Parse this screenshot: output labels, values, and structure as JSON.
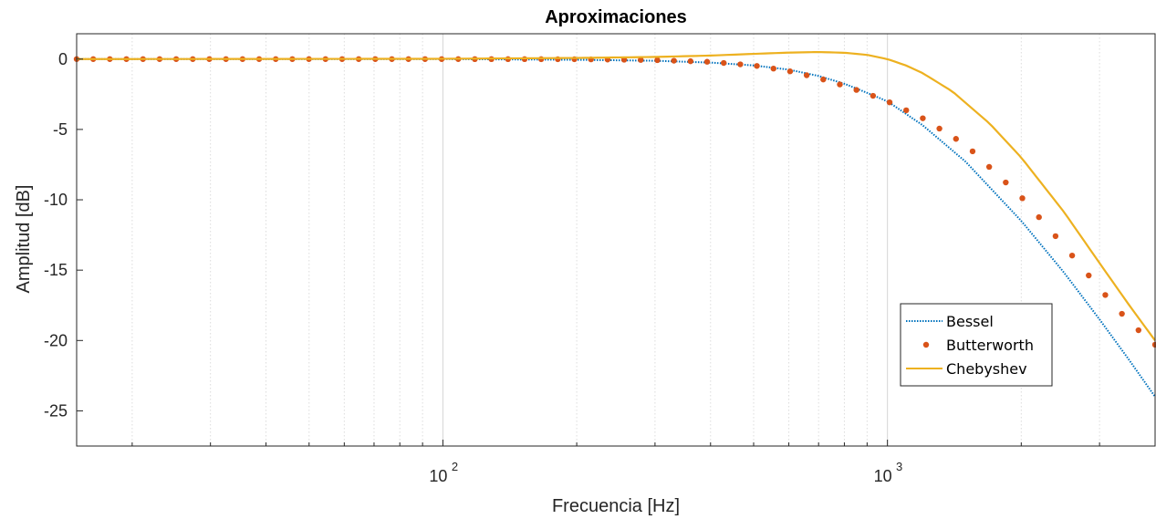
{
  "chart_data": {
    "type": "line",
    "title": "Aproximaciones",
    "xlabel": "Frecuencia [Hz]",
    "ylabel": "Amplitud [dB]",
    "xscale": "log",
    "xlim": [
      15,
      4000
    ],
    "ylim": [
      -27.5,
      1.8
    ],
    "yticks": [
      0,
      -5,
      -10,
      -15,
      -20,
      -25
    ],
    "ytick_labels": [
      "0",
      "-5",
      "-10",
      "-15",
      "-20",
      "-25"
    ],
    "xticks": [
      100,
      1000
    ],
    "xtick_labels": [
      {
        "base": "10",
        "exp": "2"
      },
      {
        "base": "10",
        "exp": "3"
      }
    ],
    "grid": "x-major-and-minor",
    "legend_position": "bottom-right",
    "series": [
      {
        "name": "Bessel",
        "style": "dotted",
        "color": "#0072BD",
        "x": [
          15,
          100,
          200,
          300,
          400,
          500,
          600,
          700,
          800,
          900,
          1000,
          1200,
          1500,
          2000,
          2500,
          3000,
          3500,
          4000
        ],
        "y": [
          0,
          0,
          -0.05,
          -0.12,
          -0.25,
          -0.45,
          -0.75,
          -1.2,
          -1.75,
          -2.4,
          -3.0,
          -4.7,
          -7.3,
          -11.5,
          -15.2,
          -18.5,
          -21.4,
          -24.0
        ]
      },
      {
        "name": "Butterworth",
        "style": "markers",
        "color": "#D95319",
        "x": [
          15,
          100,
          200,
          300,
          400,
          500,
          600,
          700,
          800,
          900,
          1000,
          1200,
          1500,
          2000,
          2500,
          3000,
          3500,
          4000
        ],
        "y": [
          0,
          0,
          -0.01,
          -0.07,
          -0.2,
          -0.45,
          -0.85,
          -1.35,
          -1.9,
          -2.45,
          -3.0,
          -4.2,
          -6.1,
          -9.8,
          -13.3,
          -16.3,
          -18.7,
          -20.3
        ]
      },
      {
        "name": "Chebyshev",
        "style": "solid",
        "color": "#EDB120",
        "x": [
          15,
          100,
          200,
          300,
          400,
          500,
          600,
          700,
          800,
          900,
          1000,
          1100,
          1200,
          1400,
          1700,
          2000,
          2500,
          3000,
          3500,
          4000
        ],
        "y": [
          0,
          0.02,
          0.08,
          0.15,
          0.25,
          0.37,
          0.46,
          0.5,
          0.45,
          0.3,
          0.0,
          -0.45,
          -1.0,
          -2.3,
          -4.6,
          -7.0,
          -10.9,
          -14.5,
          -17.5,
          -20.0
        ]
      }
    ]
  }
}
